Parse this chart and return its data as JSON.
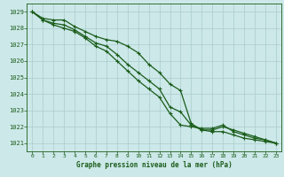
{
  "bg_color": "#cce8e8",
  "grid_color": "#aacccc",
  "line_color": "#1a5c1a",
  "title": "Graphe pression niveau de la mer (hPa)",
  "ylim": [
    1020.5,
    1029.5
  ],
  "xlim": [
    -0.5,
    23.5
  ],
  "yticks": [
    1021,
    1022,
    1023,
    1024,
    1025,
    1026,
    1027,
    1028,
    1029
  ],
  "xticks": [
    0,
    1,
    2,
    3,
    4,
    5,
    6,
    7,
    8,
    9,
    10,
    11,
    12,
    13,
    14,
    15,
    16,
    17,
    18,
    19,
    20,
    21,
    22,
    23
  ],
  "series1": [
    1029.0,
    1028.6,
    1028.5,
    1028.5,
    1028.1,
    1027.8,
    1027.5,
    1027.3,
    1027.2,
    1026.9,
    1026.5,
    1025.8,
    1025.3,
    1024.6,
    1024.2,
    1022.2,
    1021.8,
    1021.8,
    1022.0,
    1021.8,
    1021.6,
    1021.4,
    1021.2,
    1021.0
  ],
  "series2": [
    1029.0,
    1028.5,
    1028.3,
    1028.2,
    1027.9,
    1027.5,
    1027.1,
    1026.9,
    1026.4,
    1025.8,
    1025.3,
    1024.8,
    1024.3,
    1023.2,
    1022.9,
    1022.1,
    1021.8,
    1021.7,
    1021.7,
    1021.5,
    1021.3,
    1021.2,
    1021.1,
    1021.0
  ],
  "series3": [
    1029.0,
    1028.5,
    1028.2,
    1028.0,
    1027.8,
    1027.4,
    1026.9,
    1026.6,
    1026.0,
    1025.4,
    1024.8,
    1024.3,
    1023.8,
    1022.8,
    1022.1,
    1022.0,
    1021.9,
    1021.9,
    1022.1,
    1021.7,
    1021.5,
    1021.3,
    1021.2,
    1021.0
  ]
}
